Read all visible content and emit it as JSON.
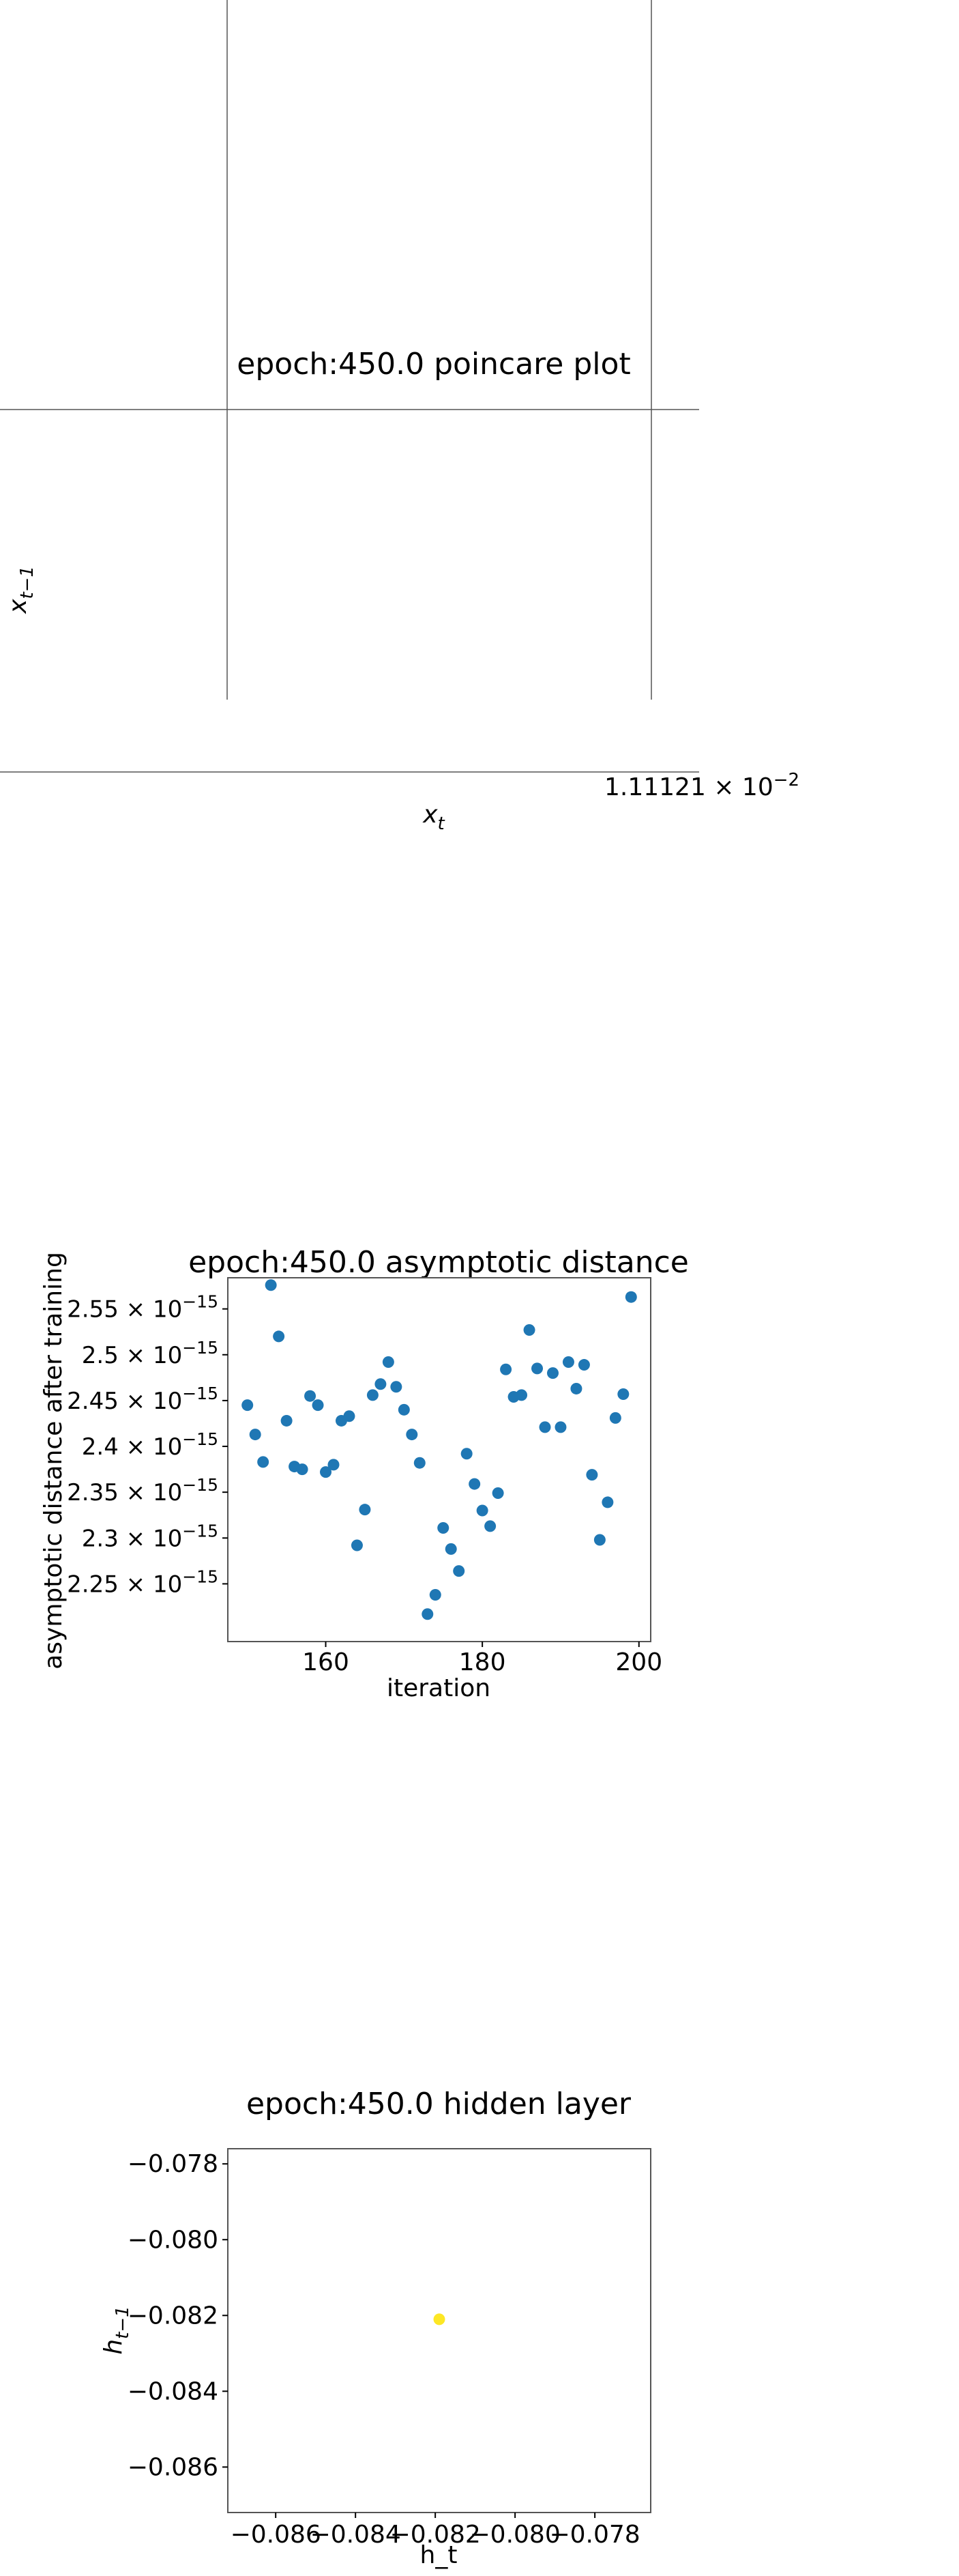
{
  "colors": {
    "point_blue": "#1f77b4",
    "point_yellow": "#fde725",
    "axes": "#000000",
    "frame": "#555555"
  },
  "chart_data": [
    {
      "type": "scatter",
      "title": "epoch:450.0 poincare plot",
      "xlabel": "x_t",
      "ylabel": "x_{t-1}",
      "x_offset_text": "1.11121 × 10^-2",
      "series": [
        {
          "x": [],
          "y": []
        }
      ],
      "grid": false
    },
    {
      "type": "scatter",
      "title": "epoch:450.0 asymptotic distance",
      "xlabel": "iteration",
      "ylabel": "asymptotic distance after training",
      "xlim": [
        147.5,
        201.5
      ],
      "ylim": [
        2.187e-15,
        2.584e-15
      ],
      "x_ticks": [
        160,
        180,
        200
      ],
      "y_ticks": [
        {
          "value": 2.25e-15,
          "mantissa": "2.25",
          "exponent": "−15"
        },
        {
          "value": 2.3e-15,
          "mantissa": "2.3",
          "exponent": "−15"
        },
        {
          "value": 2.35e-15,
          "mantissa": "2.35",
          "exponent": "−15"
        },
        {
          "value": 2.4e-15,
          "mantissa": "2.4",
          "exponent": "−15"
        },
        {
          "value": 2.45e-15,
          "mantissa": "2.45",
          "exponent": "−15"
        },
        {
          "value": 2.5e-15,
          "mantissa": "2.5",
          "exponent": "−15"
        },
        {
          "value": 2.55e-15,
          "mantissa": "2.55",
          "exponent": "−15"
        }
      ],
      "series": [
        {
          "x": [
            150,
            151,
            152,
            153,
            154,
            155,
            156,
            157,
            158,
            159,
            160,
            161,
            162,
            163,
            164,
            165,
            166,
            167,
            168,
            169,
            170,
            171,
            172,
            173,
            174,
            175,
            176,
            177,
            178,
            179,
            180,
            181,
            182,
            183,
            184,
            185,
            186,
            187,
            188,
            189,
            190,
            191,
            192,
            193,
            194,
            195,
            196,
            197,
            198,
            199
          ],
          "y": [
            2.445e-15,
            2.413e-15,
            2.383e-15,
            2.576e-15,
            2.52e-15,
            2.428e-15,
            2.378e-15,
            2.375e-15,
            2.455e-15,
            2.445e-15,
            2.372e-15,
            2.38e-15,
            2.428e-15,
            2.433e-15,
            2.292e-15,
            2.331e-15,
            2.456e-15,
            2.468e-15,
            2.492e-15,
            2.465e-15,
            2.44e-15,
            2.413e-15,
            2.382e-15,
            2.217e-15,
            2.238e-15,
            2.311e-15,
            2.288e-15,
            2.264e-15,
            2.392e-15,
            2.359e-15,
            2.33e-15,
            2.313e-15,
            2.349e-15,
            2.484e-15,
            2.454e-15,
            2.456e-15,
            2.527e-15,
            2.485e-15,
            2.421e-15,
            2.48e-15,
            2.421e-15,
            2.492e-15,
            2.463e-15,
            2.489e-15,
            2.369e-15,
            2.298e-15,
            2.339e-15,
            2.431e-15,
            2.457e-15,
            2.563e-15
          ]
        }
      ],
      "grid": false
    },
    {
      "type": "scatter",
      "title": "epoch:450.0 hidden layer",
      "xlabel": "h_t",
      "ylabel": "h_{t-1}",
      "xlim": [
        -0.0872,
        -0.0766
      ],
      "ylim": [
        -0.0872,
        -0.0776
      ],
      "x_ticks": [
        {
          "value": -0.086,
          "label": "−0.086"
        },
        {
          "value": -0.084,
          "label": "−0.084"
        },
        {
          "value": -0.082,
          "label": "−0.082"
        },
        {
          "value": -0.08,
          "label": "−0.080"
        },
        {
          "value": -0.078,
          "label": "−0.078"
        }
      ],
      "y_ticks": [
        {
          "value": -0.086,
          "label": "−0.086"
        },
        {
          "value": -0.084,
          "label": "−0.084"
        },
        {
          "value": -0.082,
          "label": "−0.082"
        },
        {
          "value": -0.08,
          "label": "−0.080"
        },
        {
          "value": -0.078,
          "label": "−0.078"
        }
      ],
      "series": [
        {
          "x": [
            -0.0819
          ],
          "y": [
            -0.0821
          ]
        }
      ],
      "grid": false
    }
  ]
}
